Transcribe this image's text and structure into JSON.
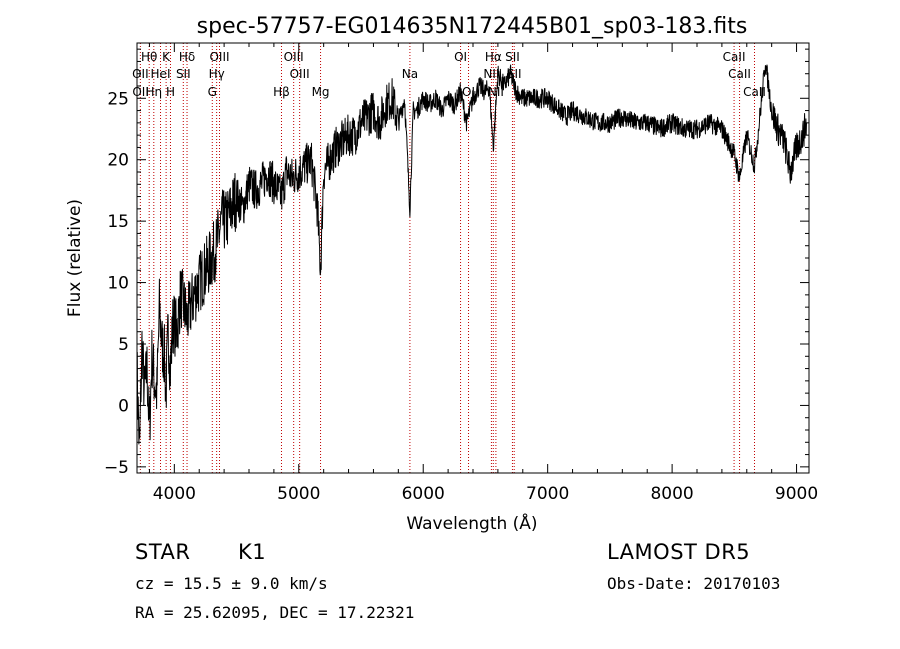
{
  "chart_data": {
    "type": "line",
    "title": "spec-57757-EG014635N172445B01_sp03-183.fits",
    "xlabel": "Wavelength (Å)",
    "ylabel": "Flux (relative)",
    "xlim": [
      3700,
      9100
    ],
    "ylim": [
      -5.5,
      29.5
    ],
    "x_ticks": [
      4000,
      5000,
      6000,
      7000,
      8000,
      9000
    ],
    "y_ticks": [
      -5,
      0,
      5,
      10,
      15,
      20,
      25
    ],
    "grid": false,
    "series": [
      {
        "x": [
          3700,
          3720,
          3740,
          3760,
          3780,
          3800,
          3820,
          3840,
          3860,
          3880,
          3900,
          3920,
          3933,
          3950,
          3968,
          3990,
          4020,
          4050,
          4080,
          4102,
          4130,
          4160,
          4200,
          4250,
          4300,
          4340,
          4380,
          4420,
          4460,
          4500,
          4550,
          4600,
          4650,
          4700,
          4750,
          4800,
          4861,
          4900,
          4950,
          5000,
          5050,
          5100,
          5150,
          5175,
          5200,
          5250,
          5300,
          5350,
          5400,
          5450,
          5500,
          5550,
          5600,
          5650,
          5700,
          5750,
          5800,
          5850,
          5893,
          5920,
          5950,
          6000,
          6050,
          6100,
          6150,
          6200,
          6250,
          6300,
          6350,
          6400,
          6450,
          6500,
          6530,
          6563,
          6600,
          6650,
          6700,
          6750,
          6800,
          6850,
          6900,
          6950,
          7000,
          7050,
          7100,
          7150,
          7200,
          7300,
          7400,
          7500,
          7600,
          7700,
          7800,
          7900,
          8000,
          8100,
          8200,
          8300,
          8400,
          8498,
          8542,
          8600,
          8662,
          8700,
          8750,
          8800,
          8850,
          8900,
          8950,
          9000,
          9050,
          9080
        ],
        "y": [
          3,
          -4,
          5,
          1,
          3,
          -2,
          4,
          2,
          1,
          8,
          5,
          4,
          1,
          6,
          3,
          7,
          6,
          9,
          8,
          7,
          8,
          9,
          10,
          11,
          12,
          13,
          15,
          15,
          16,
          17,
          16,
          18,
          17.5,
          18,
          19,
          18,
          17,
          19,
          18.5,
          19,
          19.5,
          20,
          16,
          11,
          19,
          20,
          21,
          21.5,
          22,
          22,
          23,
          23.5,
          24,
          23,
          24.5,
          25,
          23,
          25,
          16,
          24,
          24,
          25,
          24.5,
          25,
          24,
          25,
          24.5,
          25.5,
          23,
          25,
          26,
          25.5,
          26,
          21,
          27,
          26,
          27,
          25.5,
          25,
          25,
          25,
          25,
          25,
          24.5,
          24,
          23.5,
          24,
          23.5,
          23,
          23,
          23.5,
          23,
          23,
          22.5,
          23,
          22.5,
          22.5,
          23,
          22.5,
          20.5,
          18.5,
          22,
          19.5,
          23,
          28,
          24,
          22.5,
          21.5,
          19,
          21,
          22,
          23
        ]
      }
    ],
    "annotations": [
      {
        "label": "Hθ",
        "x": 3798
      },
      {
        "label": "K",
        "x": 3934
      },
      {
        "label": "Hδ",
        "x": 4102
      },
      {
        "label": "OIII",
        "x": 4363
      },
      {
        "label": "OIII",
        "x": 4959
      },
      {
        "label": "OI",
        "x": 6300
      },
      {
        "label": "Hα",
        "x": 6563
      },
      {
        "label": "SII",
        "x": 6717
      },
      {
        "label": "CaII",
        "x": 8498
      },
      {
        "label": "OII",
        "x": 3727
      },
      {
        "label": "HeI",
        "x": 3889
      },
      {
        "label": "SII",
        "x": 4072
      },
      {
        "label": "Hγ",
        "x": 4340
      },
      {
        "label": "OIII",
        "x": 5007
      },
      {
        "label": "Na",
        "x": 5893
      },
      {
        "label": "NII",
        "x": 6548
      },
      {
        "label": "SII",
        "x": 6731
      },
      {
        "label": "CaII",
        "x": 8542
      },
      {
        "label": "OII",
        "x": 3729
      },
      {
        "label": "Hη",
        "x": 3835
      },
      {
        "label": "H",
        "x": 3969
      },
      {
        "label": "G",
        "x": 4305
      },
      {
        "label": "Hβ",
        "x": 4861
      },
      {
        "label": "Mg",
        "x": 5175
      },
      {
        "label": "OI",
        "x": 6364
      },
      {
        "label": "NII",
        "x": 6584
      },
      {
        "label": "CaII",
        "x": 8662
      }
    ],
    "line_markers_x": [
      3727,
      3798,
      3835,
      3889,
      3934,
      3969,
      4072,
      4102,
      4305,
      4340,
      4363,
      4861,
      4959,
      5007,
      5175,
      5893,
      6300,
      6364,
      6548,
      6563,
      6584,
      6717,
      6731,
      8498,
      8542,
      8662
    ],
    "colors": {
      "spectrum": "#000000",
      "markers": "#c00000",
      "axes": "#000000"
    }
  },
  "info": {
    "star": "STAR",
    "class": "K1",
    "survey": "LAMOST DR5",
    "cz": "cz = 15.5 ± 9.0 km/s",
    "obs_date": "Obs-Date: 20170103",
    "radec": "RA =  25.62095, DEC =  17.22321"
  }
}
